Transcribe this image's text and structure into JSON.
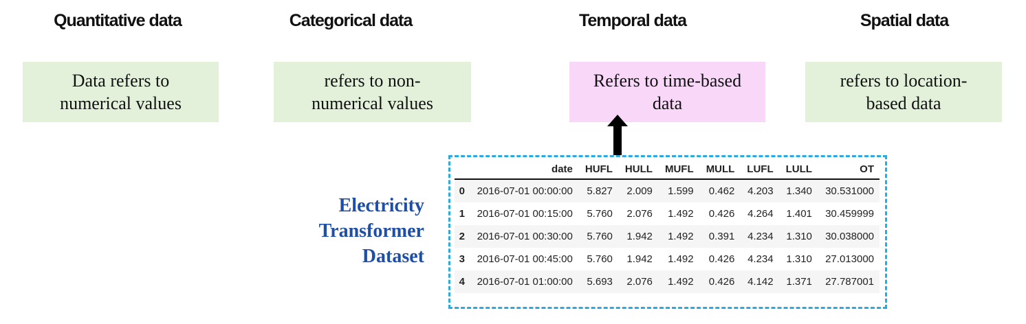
{
  "colors": {
    "green_box": "#e3f1da",
    "pink_box": "#f8d7f9",
    "table_border": "#29abe2",
    "label_blue": "#1d4fa8",
    "row_stripe": "#f5f5f5",
    "arrow_black": "#000000"
  },
  "sections": [
    {
      "id": "quantitative",
      "title": "Quantitative data",
      "description": "Data refers to\nnumerical values",
      "highlighted": false
    },
    {
      "id": "categorical",
      "title": "Categorical data",
      "description": "refers to non-\nnumerical values",
      "highlighted": false
    },
    {
      "id": "temporal",
      "title": "Temporal data",
      "description": "Refers to time-based\ndata",
      "highlighted": true
    },
    {
      "id": "spatial",
      "title": "Spatial data",
      "description": "refers to location-\nbased data",
      "highlighted": false
    }
  ],
  "dataset_label": "Electricity\nTransformer\nDataset",
  "table": {
    "columns": [
      "",
      "date",
      "HUFL",
      "HULL",
      "MUFL",
      "MULL",
      "LUFL",
      "LULL",
      "OT"
    ],
    "rows": [
      [
        "0",
        "2016-07-01 00:00:00",
        "5.827",
        "2.009",
        "1.599",
        "0.462",
        "4.203",
        "1.340",
        "30.531000"
      ],
      [
        "1",
        "2016-07-01 00:15:00",
        "5.760",
        "2.076",
        "1.492",
        "0.426",
        "4.264",
        "1.401",
        "30.459999"
      ],
      [
        "2",
        "2016-07-01 00:30:00",
        "5.760",
        "1.942",
        "1.492",
        "0.391",
        "4.234",
        "1.310",
        "30.038000"
      ],
      [
        "3",
        "2016-07-01 00:45:00",
        "5.760",
        "1.942",
        "1.492",
        "0.426",
        "4.234",
        "1.310",
        "27.013000"
      ],
      [
        "4",
        "2016-07-01 01:00:00",
        "5.693",
        "2.076",
        "1.492",
        "0.426",
        "4.142",
        "1.371",
        "27.787001"
      ]
    ]
  }
}
